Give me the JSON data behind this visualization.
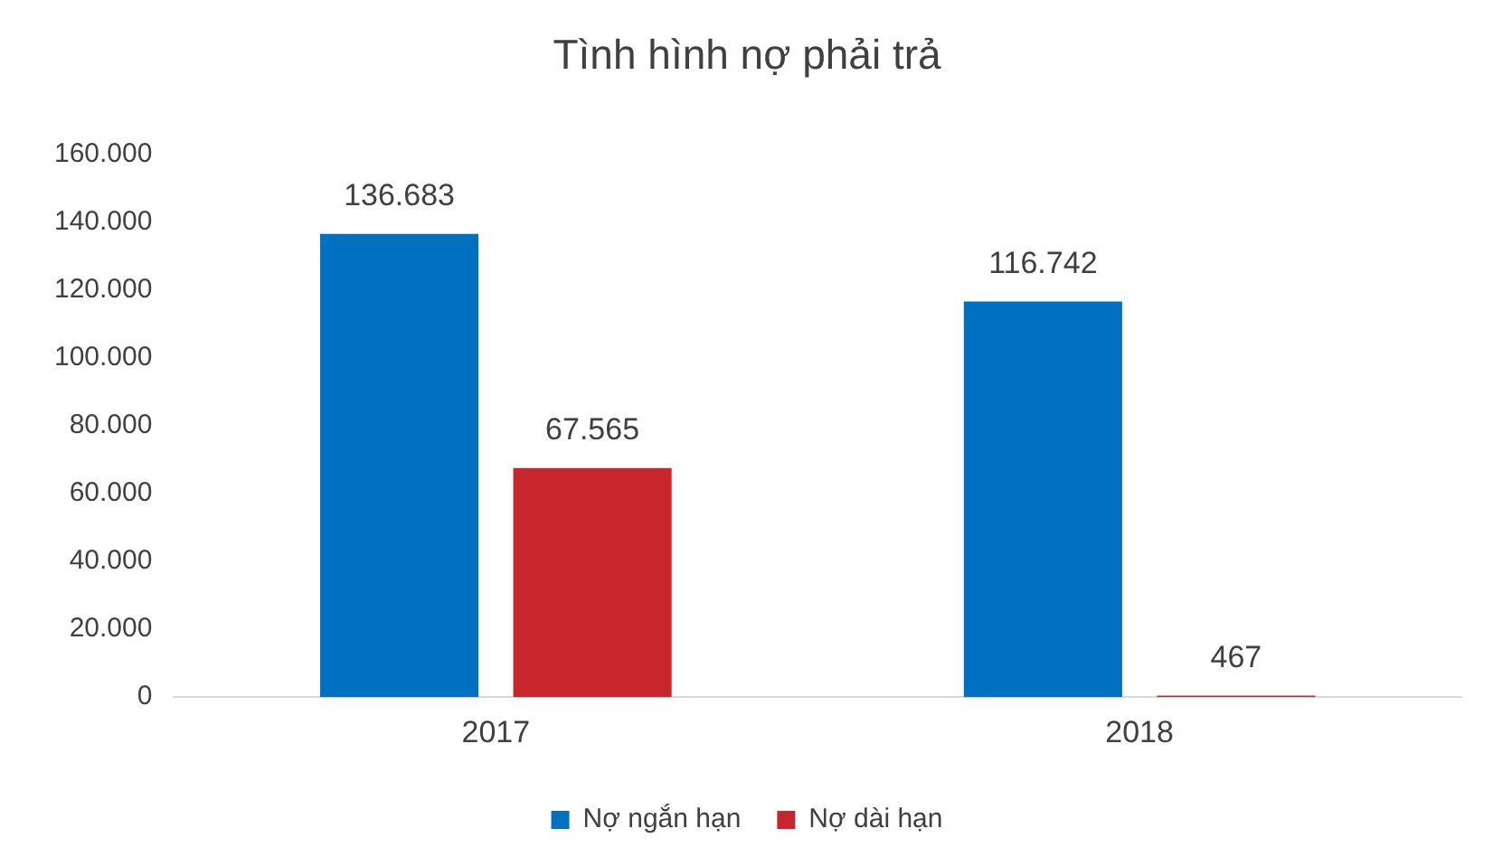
{
  "chart_data": {
    "type": "bar",
    "title": "Tình hình nợ phải trả",
    "categories": [
      "2017",
      "2018"
    ],
    "series": [
      {
        "name": "Nợ ngắn hạn",
        "color": "#0070c0",
        "values": [
          136683,
          116742
        ],
        "value_labels": [
          "136.683",
          "116.742"
        ]
      },
      {
        "name": "Nợ dài hạn",
        "color": "#c9252c",
        "values": [
          67565,
          467
        ],
        "value_labels": [
          "67.565",
          "467"
        ]
      }
    ],
    "ylim": [
      0,
      160000
    ],
    "yticks": [
      {
        "value": 0,
        "label": "0"
      },
      {
        "value": 20000,
        "label": "20.000"
      },
      {
        "value": 40000,
        "label": "40.000"
      },
      {
        "value": 60000,
        "label": "60.000"
      },
      {
        "value": 80000,
        "label": "80.000"
      },
      {
        "value": 100000,
        "label": "100.000"
      },
      {
        "value": 120000,
        "label": "120.000"
      },
      {
        "value": 140000,
        "label": "140.000"
      },
      {
        "value": 160000,
        "label": "160.000"
      }
    ],
    "grid": false,
    "legend": "bottom"
  }
}
